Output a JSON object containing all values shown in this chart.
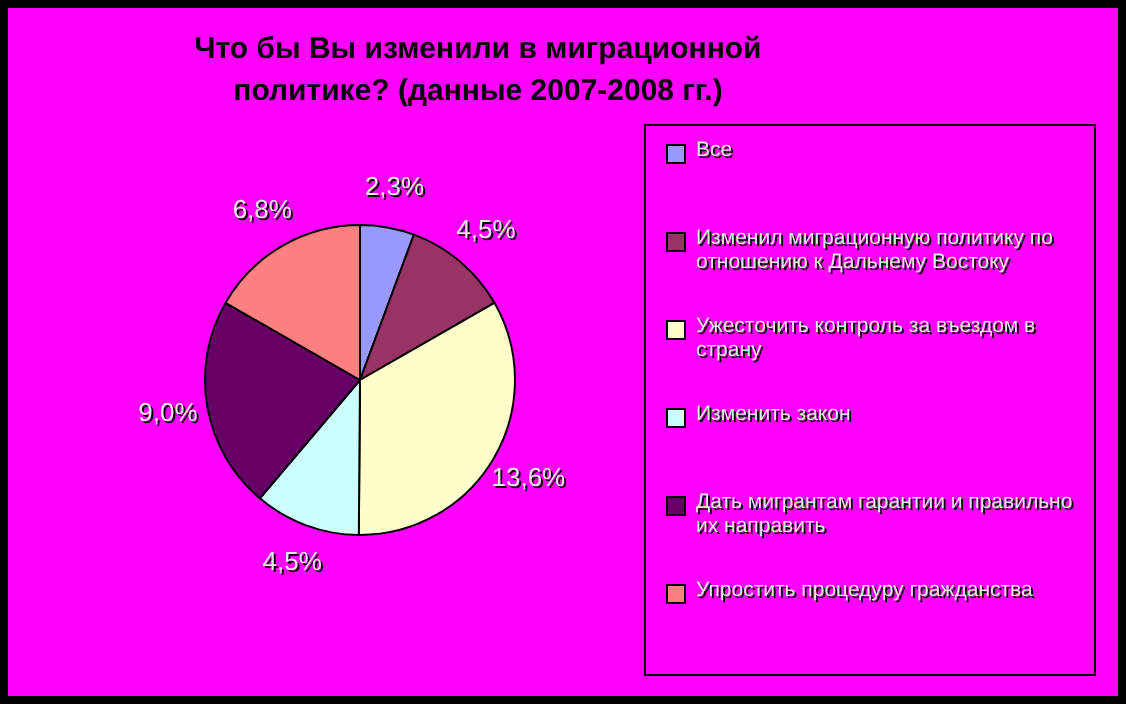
{
  "chart_data": {
    "type": "pie",
    "title": "Что бы Вы изменили в миграционной политике? (данные 2007-2008 гг.)",
    "categories": [
      "Все",
      "Изменил миграционную политику по отношению к Дальнему Востоку",
      "Ужесточить контроль за въездом в страну",
      "Изменить закон",
      "Дать мигрантам гарантии и правильно их направить",
      "Упростить процедуру гражданства"
    ],
    "values": [
      2.3,
      4.5,
      13.6,
      4.5,
      9.0,
      6.8
    ],
    "value_labels": [
      "2,3%",
      "4,5%",
      "13,6%",
      "4,5%",
      "9,0%",
      "6,8%"
    ],
    "colors": [
      "#9999ff",
      "#993366",
      "#ffffcc",
      "#ccffff",
      "#660066",
      "#ff8080"
    ],
    "legend": "right"
  }
}
